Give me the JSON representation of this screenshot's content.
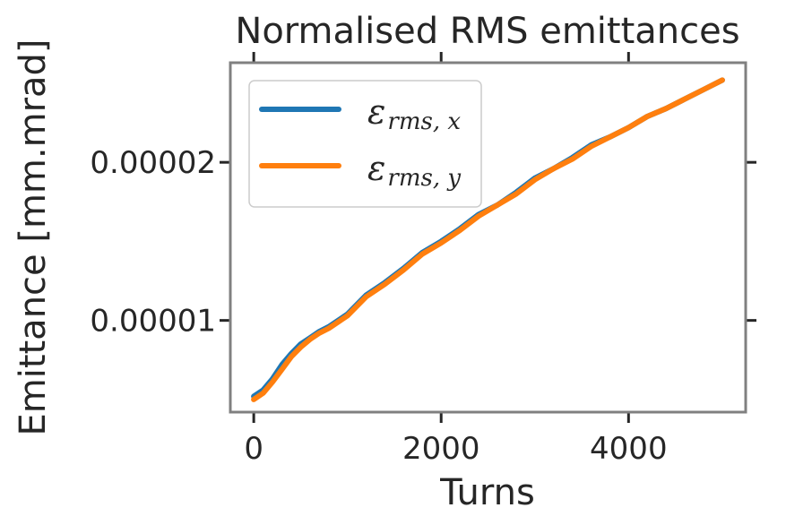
{
  "chart_data": {
    "type": "line",
    "title": "Normalised RMS emittances",
    "xlabel": "Turns",
    "ylabel": "Emittance [mm.mrad]",
    "xlim": [
      -250,
      5250
    ],
    "ylim": [
      4.2e-06,
      2.63e-05
    ],
    "xticks": [
      0,
      2000,
      4000
    ],
    "xtick_labels": [
      "0",
      "2000",
      "4000"
    ],
    "yticks": [
      1e-05,
      2e-05
    ],
    "ytick_labels": [
      "0.00001",
      "0.00002"
    ],
    "grid": false,
    "legend_position": "upper-left",
    "series": [
      {
        "name": "ε_rms,x",
        "color": "#1f77b4",
        "x": [
          0,
          100,
          200,
          300,
          400,
          500,
          600,
          700,
          800,
          1000,
          1200,
          1400,
          1600,
          1800,
          2000,
          2200,
          2400,
          2600,
          2800,
          3000,
          3200,
          3400,
          3600,
          3800,
          4000,
          4200,
          4400,
          4600,
          4800,
          5000
        ],
        "y": [
          5.2e-06,
          5.6e-06,
          6.3e-06,
          7.2e-06,
          7.9e-06,
          8.5e-06,
          8.9e-06,
          9.3e-06,
          9.6e-06,
          1.04e-05,
          1.16e-05,
          1.24e-05,
          1.33e-05,
          1.43e-05,
          1.5e-05,
          1.58e-05,
          1.67e-05,
          1.73e-05,
          1.81e-05,
          1.9e-05,
          1.96e-05,
          2.03e-05,
          2.11e-05,
          2.16e-05,
          2.22e-05,
          2.29e-05,
          2.34e-05,
          2.4e-05,
          2.46e-05,
          2.52e-05
        ]
      },
      {
        "name": "ε_rms,y",
        "color": "#ff7f0e",
        "x": [
          0,
          100,
          200,
          300,
          400,
          500,
          600,
          700,
          800,
          1000,
          1200,
          1400,
          1600,
          1800,
          2000,
          2200,
          2400,
          2600,
          2800,
          3000,
          3200,
          3400,
          3600,
          3800,
          4000,
          4200,
          4400,
          4600,
          4800,
          5000
        ],
        "y": [
          5e-06,
          5.4e-06,
          6.1e-06,
          6.9e-06,
          7.7e-06,
          8.3e-06,
          8.8e-06,
          9.2e-06,
          9.5e-06,
          1.03e-05,
          1.15e-05,
          1.23e-05,
          1.32e-05,
          1.42e-05,
          1.49e-05,
          1.57e-05,
          1.66e-05,
          1.73e-05,
          1.8e-05,
          1.89e-05,
          1.96e-05,
          2.02e-05,
          2.1e-05,
          2.16e-05,
          2.22e-05,
          2.29e-05,
          2.34e-05,
          2.4e-05,
          2.46e-05,
          2.52e-05
        ]
      }
    ],
    "legend": [
      {
        "symbol": "ε",
        "sub": "rms, x"
      },
      {
        "symbol": "ε",
        "sub": "rms, y"
      }
    ]
  },
  "colors": {
    "frame": "#808080",
    "text": "#262626",
    "legend_border": "#cccccc"
  }
}
